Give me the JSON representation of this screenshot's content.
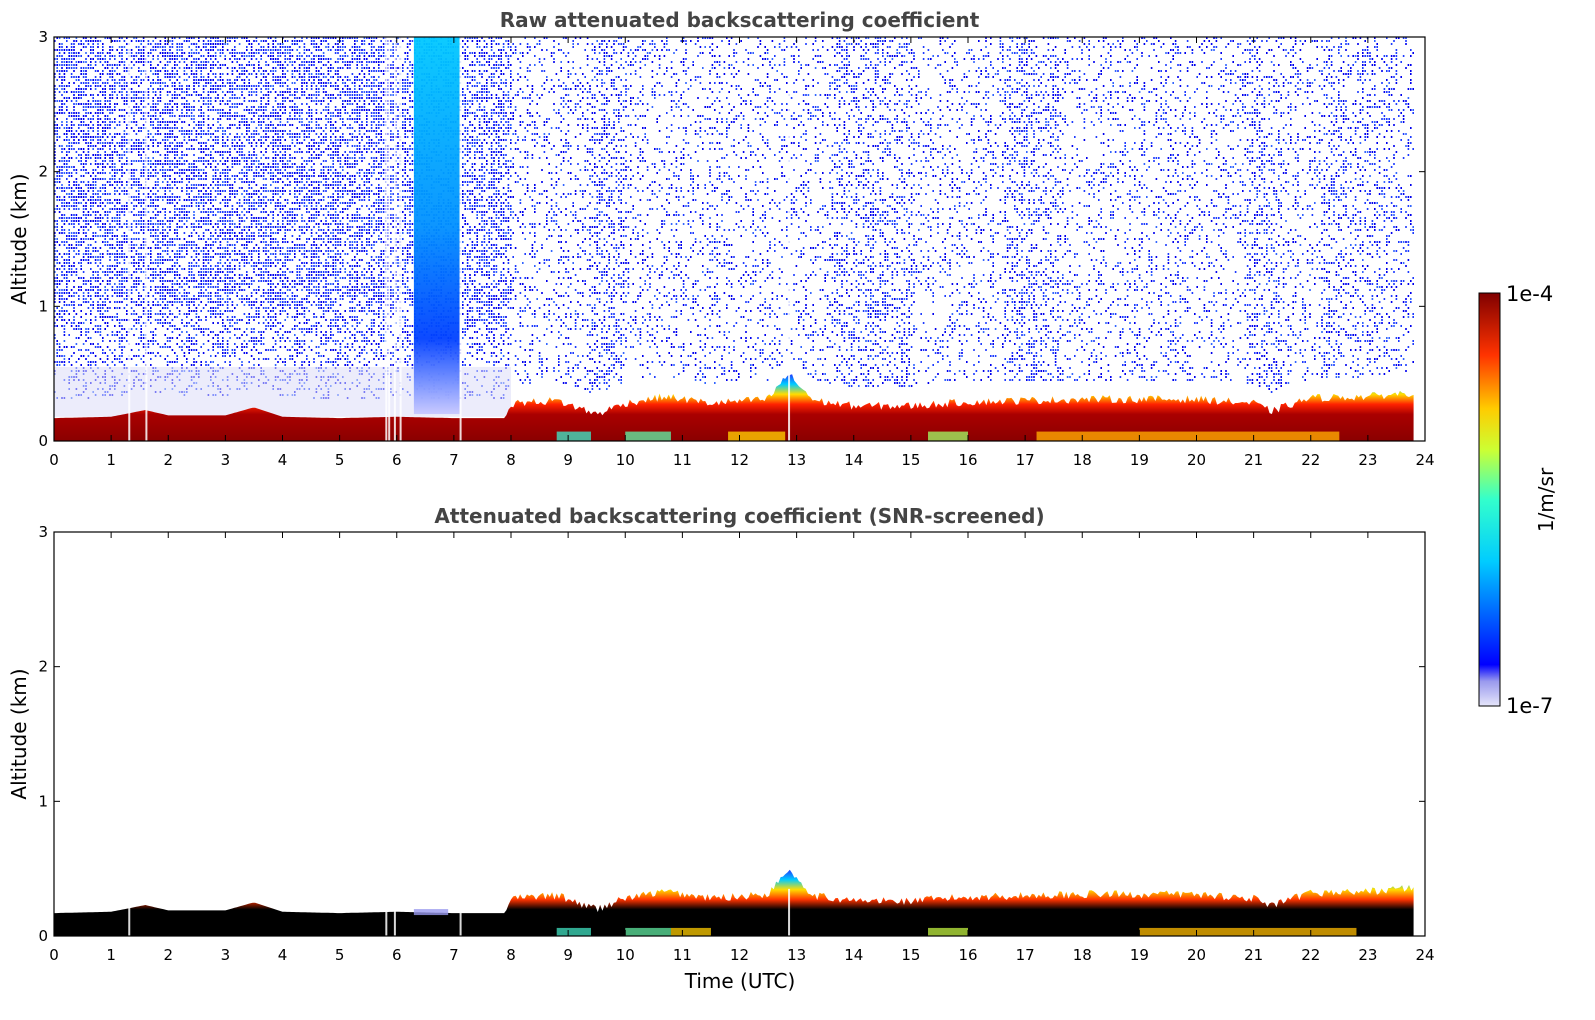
{
  "chart_data": [
    {
      "type": "heatmap",
      "title": "Raw attenuated backscattering coefficient",
      "xlabel": "",
      "ylabel": "Altitude (km)",
      "xlim": [
        0,
        24
      ],
      "ylim": [
        0,
        3
      ],
      "xticks": [
        0,
        1,
        2,
        3,
        4,
        5,
        6,
        7,
        8,
        9,
        10,
        11,
        12,
        13,
        14,
        15,
        16,
        17,
        18,
        19,
        20,
        21,
        22,
        23,
        24
      ],
      "yticks": [
        0,
        1,
        2,
        3
      ],
      "layer_top_km": [
        {
          "t": 0,
          "h": 0.17
        },
        {
          "t": 1,
          "h": 0.18
        },
        {
          "t": 1.6,
          "h": 0.23
        },
        {
          "t": 2,
          "h": 0.19
        },
        {
          "t": 3,
          "h": 0.19
        },
        {
          "t": 3.5,
          "h": 0.25
        },
        {
          "t": 4,
          "h": 0.18
        },
        {
          "t": 5,
          "h": 0.17
        },
        {
          "t": 6,
          "h": 0.18
        },
        {
          "t": 7,
          "h": 0.17
        },
        {
          "t": 7.9,
          "h": 0.17
        },
        {
          "t": 8,
          "h": 0.28
        },
        {
          "t": 8.8,
          "h": 0.3
        },
        {
          "t": 9.5,
          "h": 0.2
        },
        {
          "t": 10,
          "h": 0.28
        },
        {
          "t": 10.7,
          "h": 0.33
        },
        {
          "t": 11.5,
          "h": 0.28
        },
        {
          "t": 12.5,
          "h": 0.31
        },
        {
          "t": 12.85,
          "h": 0.5
        },
        {
          "t": 13.3,
          "h": 0.3
        },
        {
          "t": 14,
          "h": 0.26
        },
        {
          "t": 15,
          "h": 0.26
        },
        {
          "t": 16,
          "h": 0.29
        },
        {
          "t": 17,
          "h": 0.3
        },
        {
          "t": 18,
          "h": 0.31
        },
        {
          "t": 19,
          "h": 0.31
        },
        {
          "t": 20,
          "h": 0.31
        },
        {
          "t": 21,
          "h": 0.28
        },
        {
          "t": 21.3,
          "h": 0.22
        },
        {
          "t": 22,
          "h": 0.32
        },
        {
          "t": 23,
          "h": 0.33
        },
        {
          "t": 23.8,
          "h": 0.36
        }
      ]
    },
    {
      "type": "heatmap",
      "title": "Attenuated backscattering coefficient (SNR-screened)",
      "xlabel": "Time (UTC)",
      "ylabel": "Altitude (km)",
      "xlim": [
        0,
        24
      ],
      "ylim": [
        0,
        3
      ],
      "xticks": [
        0,
        1,
        2,
        3,
        4,
        5,
        6,
        7,
        8,
        9,
        10,
        11,
        12,
        13,
        14,
        15,
        16,
        17,
        18,
        19,
        20,
        21,
        22,
        23,
        24
      ],
      "yticks": [
        0,
        1,
        2,
        3
      ]
    }
  ],
  "colorbar": {
    "label": "1/m/sr",
    "min_label": "1e-7",
    "max_label": "1e-4",
    "colormap": "jet",
    "scale": "log"
  },
  "colors": {
    "title": "#444444",
    "noise_blue": "#1e3cff",
    "layer_red": "#990000",
    "screened_black": "#000000"
  }
}
